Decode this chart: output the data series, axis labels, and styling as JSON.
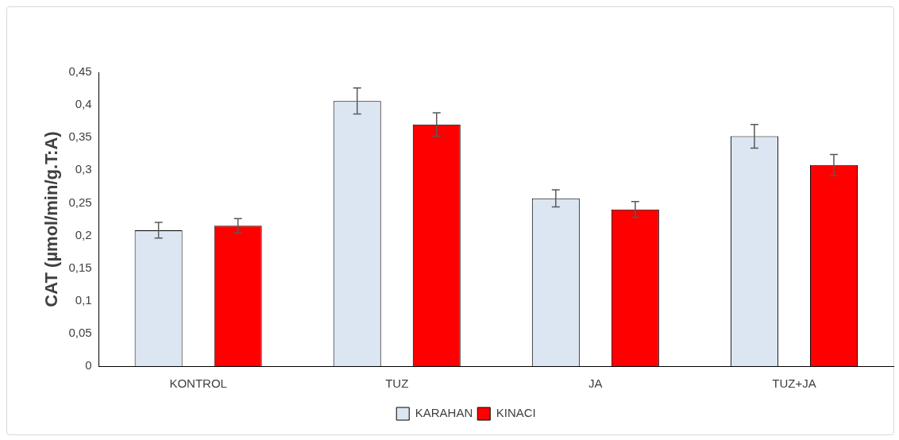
{
  "chart_data": {
    "type": "bar",
    "ylabel": "CAT (µmol/min/g.T:A)",
    "categories": [
      "KONTROL",
      "TUZ",
      "JA",
      "TUZ+JA"
    ],
    "series": [
      {
        "name": "KARAHAN",
        "color": "#dce6f2",
        "values": [
          0.208,
          0.406,
          0.257,
          0.352
        ],
        "errors": [
          0.012,
          0.02,
          0.013,
          0.018
        ]
      },
      {
        "name": "KINACI",
        "color": "#ff0000",
        "values": [
          0.215,
          0.37,
          0.24,
          0.308
        ],
        "errors": [
          0.011,
          0.018,
          0.012,
          0.016
        ]
      }
    ],
    "ylim": [
      0,
      0.45
    ],
    "yticks": [
      {
        "value": 0,
        "label": "0"
      },
      {
        "value": 0.05,
        "label": "0,05"
      },
      {
        "value": 0.1,
        "label": "0,1"
      },
      {
        "value": 0.15,
        "label": "0,15"
      },
      {
        "value": 0.2,
        "label": "0,2"
      },
      {
        "value": 0.25,
        "label": "0,25"
      },
      {
        "value": 0.3,
        "label": "0,3"
      },
      {
        "value": 0.35,
        "label": "0,35"
      },
      {
        "value": 0.4,
        "label": "0,4"
      },
      {
        "value": 0.45,
        "label": "0,45"
      }
    ],
    "grid": false,
    "legend": "bottom"
  }
}
